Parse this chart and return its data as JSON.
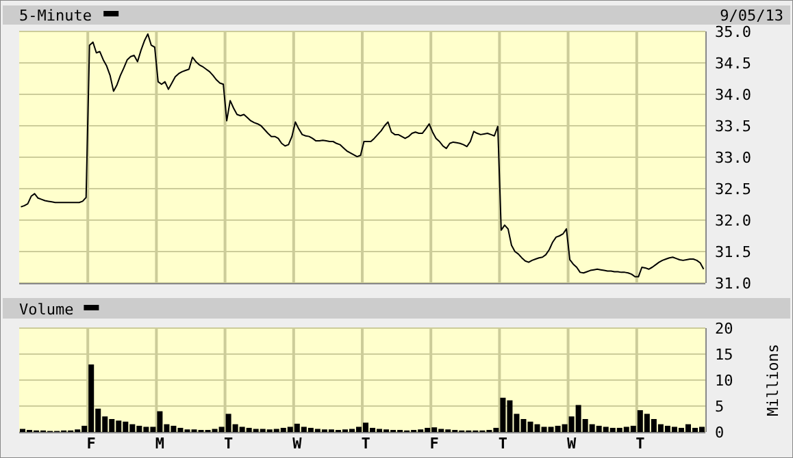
{
  "chart_data": [
    {
      "type": "line",
      "legend": "top left",
      "grid": true,
      "annotations": [
        "9/05/13"
      ],
      "ylim": [
        31,
        35
      ],
      "categories": [
        null,
        null,
        null,
        null,
        null,
        null,
        null,
        null,
        null,
        null,
        null,
        null,
        null,
        null,
        null,
        null,
        null,
        null,
        null,
        null,
        null,
        null,
        null,
        null,
        null,
        null,
        null,
        null,
        null,
        null,
        null,
        null,
        null,
        null,
        null,
        null,
        null,
        null,
        null,
        null,
        null,
        null,
        null,
        null,
        null,
        null,
        null,
        null,
        null,
        null,
        null,
        null,
        null,
        null,
        null,
        null,
        null,
        null,
        null,
        null,
        null,
        null,
        null,
        null,
        null,
        null,
        null,
        null,
        null,
        null,
        null,
        null,
        null,
        null,
        null,
        null,
        null,
        null,
        null,
        null,
        null,
        null,
        null,
        null,
        null,
        null,
        null,
        null,
        null,
        null,
        null,
        null,
        null,
        null,
        null,
        null,
        null,
        null,
        null,
        null,
        null,
        null,
        null,
        null,
        null,
        null,
        null,
        null,
        null,
        null,
        null,
        null,
        null,
        null,
        null,
        null,
        null,
        null,
        null,
        null,
        null,
        null,
        null,
        null,
        null,
        null,
        null,
        null,
        null,
        null,
        null,
        null,
        null,
        null,
        null,
        null,
        null,
        null,
        null,
        null,
        null,
        null,
        null,
        null,
        null,
        null,
        null,
        null,
        null,
        null,
        null,
        null,
        null,
        null,
        null,
        null,
        null,
        null,
        null,
        null,
        null,
        null,
        null,
        null,
        null,
        null,
        null,
        null,
        null,
        null,
        null,
        null,
        null,
        null,
        null,
        null,
        null,
        null,
        null,
        null,
        null,
        null,
        null,
        null,
        null,
        null,
        null,
        null,
        null,
        null,
        null,
        null,
        null,
        null,
        null,
        null,
        null,
        null,
        null,
        null
      ],
      "yticks": [
        {
          "value": 31,
          "label": "31.0"
        },
        {
          "value": 31.5,
          "label": "31.5"
        },
        {
          "value": 32,
          "label": "32.0"
        },
        {
          "value": 32.5,
          "label": "32.5"
        },
        {
          "value": 33,
          "label": "33.0"
        },
        {
          "value": 33.5,
          "label": "33.5"
        },
        {
          "value": 34,
          "label": "34.0"
        },
        {
          "value": 34.5,
          "label": "34.5"
        },
        {
          "value": 35,
          "label": "35.0"
        }
      ],
      "series": [
        {
          "name": "5-Minute",
          "color": "#000000",
          "values": [
            32.21,
            32.23,
            32.26,
            32.38,
            32.42,
            32.35,
            32.33,
            32.31,
            32.3,
            32.29,
            32.28,
            32.28,
            32.28,
            32.28,
            32.28,
            32.28,
            32.28,
            32.28,
            32.3,
            32.36,
            34.78,
            34.83,
            34.66,
            34.68,
            34.55,
            34.45,
            34.3,
            34.05,
            34.15,
            34.3,
            34.42,
            34.55,
            34.6,
            34.62,
            34.52,
            34.7,
            34.85,
            34.96,
            34.78,
            34.75,
            34.2,
            34.16,
            34.2,
            34.08,
            34.18,
            34.28,
            34.33,
            34.36,
            34.38,
            34.4,
            34.59,
            34.52,
            34.47,
            34.44,
            34.4,
            34.36,
            34.3,
            34.23,
            34.18,
            34.16,
            33.58,
            33.9,
            33.78,
            33.68,
            33.66,
            33.68,
            33.63,
            33.58,
            33.55,
            33.53,
            33.5,
            33.44,
            33.38,
            33.33,
            33.33,
            33.3,
            33.22,
            33.18,
            33.2,
            33.33,
            33.56,
            33.45,
            33.36,
            33.34,
            33.33,
            33.3,
            33.26,
            33.26,
            33.27,
            33.26,
            33.25,
            33.25,
            33.22,
            33.2,
            33.15,
            33.1,
            33.07,
            33.04,
            33.01,
            33.03,
            33.25,
            33.25,
            33.25,
            33.3,
            33.36,
            33.42,
            33.5,
            33.56,
            33.4,
            33.36,
            33.36,
            33.33,
            33.3,
            33.33,
            33.38,
            33.4,
            33.38,
            33.38,
            33.45,
            33.53,
            33.4,
            33.3,
            33.25,
            33.18,
            33.14,
            33.22,
            33.24,
            33.23,
            33.22,
            33.2,
            33.17,
            33.25,
            33.41,
            33.38,
            33.36,
            33.37,
            33.38,
            33.36,
            33.34,
            33.49,
            31.84,
            31.92,
            31.86,
            31.6,
            31.5,
            31.46,
            31.4,
            31.35,
            31.33,
            31.36,
            31.38,
            31.4,
            31.41,
            31.45,
            31.53,
            31.65,
            31.73,
            31.75,
            31.78,
            31.86,
            31.37,
            31.3,
            31.25,
            31.17,
            31.16,
            31.18,
            31.2,
            31.21,
            31.22,
            31.21,
            31.2,
            31.19,
            31.19,
            31.18,
            31.18,
            31.17,
            31.17,
            31.16,
            31.14,
            31.1,
            31.1,
            31.25,
            31.24,
            31.22,
            31.25,
            31.29,
            31.33,
            31.36,
            31.38,
            31.4,
            31.41,
            31.39,
            31.37,
            31.36,
            31.37,
            31.38,
            31.38,
            31.36,
            31.32,
            31.22
          ]
        }
      ]
    },
    {
      "type": "bar",
      "legend": "top left",
      "grid": true,
      "ylabel": "Millions",
      "ylim": [
        0,
        20
      ],
      "yticks": [
        0,
        5,
        10,
        15,
        20
      ],
      "categories": [
        null,
        null,
        null,
        null,
        null,
        null,
        null,
        null,
        null,
        null,
        "F",
        null,
        null,
        null,
        null,
        null,
        null,
        null,
        null,
        null,
        "M",
        null,
        null,
        null,
        null,
        null,
        null,
        null,
        null,
        null,
        "T",
        null,
        null,
        null,
        null,
        null,
        null,
        null,
        null,
        null,
        "W",
        null,
        null,
        null,
        null,
        null,
        null,
        null,
        null,
        null,
        "T",
        null,
        null,
        null,
        null,
        null,
        null,
        null,
        null,
        null,
        "F",
        null,
        null,
        null,
        null,
        null,
        null,
        null,
        null,
        null,
        "T",
        null,
        null,
        null,
        null,
        null,
        null,
        null,
        null,
        null,
        "W",
        null,
        null,
        null,
        null,
        null,
        null,
        null,
        null,
        null,
        "T",
        null,
        null,
        null,
        null,
        null,
        null,
        null,
        null,
        null
      ],
      "series": [
        {
          "name": "Volume",
          "color": "#000000",
          "values": [
            0.6,
            0.4,
            0.3,
            0.3,
            0.2,
            0.2,
            0.3,
            0.3,
            0.5,
            1.2,
            13,
            4.5,
            3,
            2.5,
            2.2,
            2,
            1.5,
            1.2,
            1,
            1,
            4,
            1.5,
            1.2,
            0.8,
            0.5,
            0.5,
            0.4,
            0.4,
            0.6,
            1,
            3.5,
            1.5,
            1,
            0.8,
            0.6,
            0.6,
            0.5,
            0.6,
            0.8,
            1,
            1.6,
            1,
            0.8,
            0.6,
            0.5,
            0.5,
            0.4,
            0.5,
            0.6,
            1,
            1.8,
            0.8,
            0.6,
            0.5,
            0.4,
            0.4,
            0.3,
            0.4,
            0.5,
            0.8,
            0.9,
            0.6,
            0.5,
            0.4,
            0.3,
            0.3,
            0.3,
            0.3,
            0.4,
            0.8,
            6.6,
            6.1,
            3.5,
            2.5,
            2,
            1.5,
            1,
            1,
            1.2,
            1.5,
            3,
            5.2,
            2.5,
            1.5,
            1.2,
            1,
            0.8,
            0.8,
            1,
            1.2,
            4.2,
            3.5,
            2.5,
            1.5,
            1.2,
            1,
            0.8,
            1.5,
            0.8,
            1
          ]
        }
      ]
    }
  ]
}
